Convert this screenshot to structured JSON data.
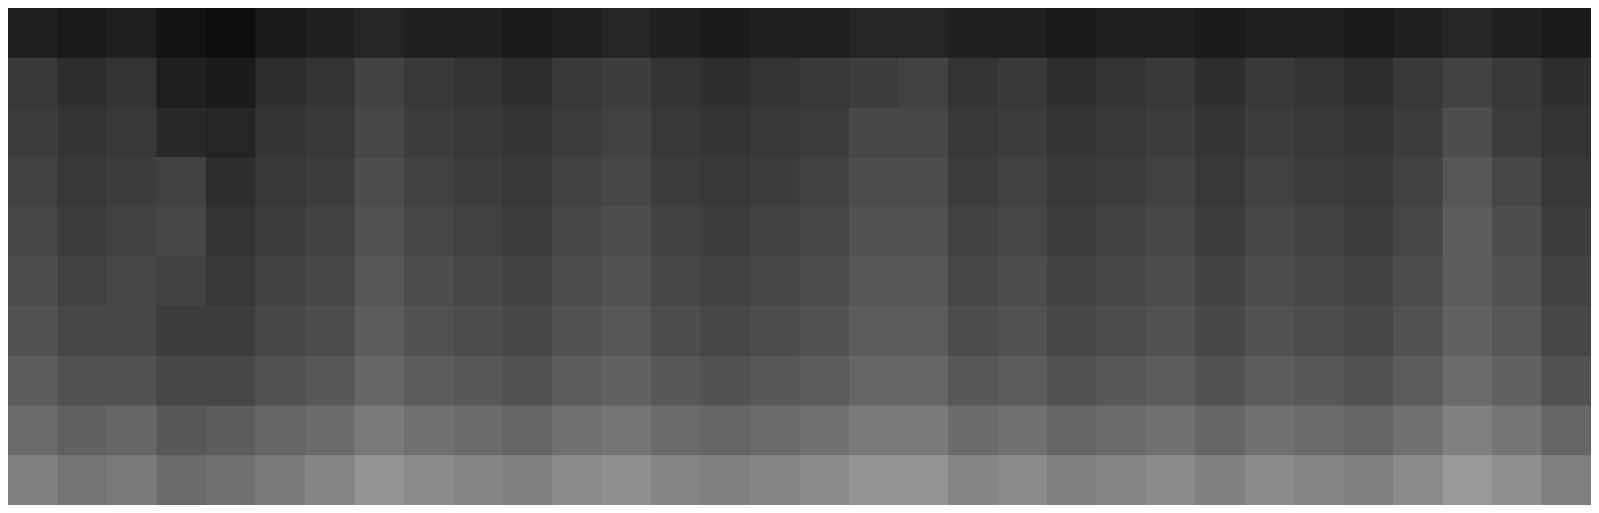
{
  "chart_data": {
    "type": "heatmap",
    "tick_labels": false,
    "color": "#ffffff",
    "zlim": [
      0,
      100
    ],
    "cells": [
      [
        12,
        10,
        12,
        8,
        6,
        10,
        12,
        14,
        12,
        12,
        10,
        12,
        14,
        12,
        10,
        12,
        12,
        14,
        14,
        12,
        12,
        10,
        12,
        12,
        10,
        12,
        12,
        10,
        12,
        14,
        12,
        10
      ],
      [
        22,
        18,
        20,
        12,
        10,
        18,
        20,
        26,
        22,
        20,
        18,
        22,
        24,
        20,
        18,
        20,
        22,
        24,
        26,
        20,
        22,
        18,
        20,
        22,
        18,
        22,
        20,
        18,
        22,
        26,
        22,
        18
      ],
      [
        24,
        20,
        22,
        16,
        14,
        20,
        22,
        28,
        24,
        22,
        20,
        24,
        26,
        22,
        20,
        22,
        24,
        28,
        28,
        22,
        24,
        20,
        22,
        24,
        20,
        24,
        22,
        20,
        24,
        30,
        24,
        20
      ],
      [
        26,
        22,
        24,
        26,
        18,
        22,
        24,
        30,
        26,
        24,
        22,
        26,
        28,
        24,
        22,
        24,
        26,
        30,
        30,
        24,
        26,
        22,
        24,
        26,
        22,
        26,
        24,
        22,
        26,
        34,
        28,
        22
      ],
      [
        28,
        24,
        26,
        28,
        20,
        24,
        26,
        32,
        28,
        26,
        24,
        28,
        30,
        26,
        24,
        26,
        28,
        32,
        32,
        26,
        28,
        24,
        26,
        28,
        24,
        28,
        26,
        24,
        28,
        36,
        30,
        24
      ],
      [
        30,
        26,
        28,
        26,
        22,
        26,
        28,
        34,
        30,
        28,
        26,
        30,
        32,
        28,
        26,
        28,
        30,
        34,
        34,
        28,
        30,
        26,
        28,
        30,
        26,
        30,
        28,
        26,
        30,
        36,
        32,
        26
      ],
      [
        32,
        28,
        28,
        24,
        24,
        28,
        30,
        36,
        32,
        30,
        28,
        32,
        34,
        30,
        28,
        30,
        32,
        36,
        36,
        30,
        32,
        28,
        30,
        32,
        28,
        32,
        30,
        28,
        32,
        38,
        34,
        28
      ],
      [
        36,
        32,
        32,
        28,
        28,
        32,
        34,
        40,
        36,
        34,
        32,
        36,
        38,
        34,
        32,
        34,
        36,
        40,
        40,
        34,
        36,
        32,
        34,
        36,
        32,
        36,
        34,
        32,
        36,
        42,
        38,
        32
      ],
      [
        42,
        38,
        40,
        34,
        36,
        40,
        42,
        48,
        44,
        42,
        40,
        44,
        46,
        42,
        40,
        42,
        44,
        48,
        48,
        42,
        44,
        40,
        42,
        44,
        40,
        44,
        42,
        40,
        44,
        50,
        46,
        40
      ],
      [
        50,
        46,
        48,
        42,
        44,
        48,
        52,
        58,
        54,
        52,
        50,
        54,
        56,
        52,
        50,
        52,
        54,
        58,
        58,
        52,
        54,
        50,
        52,
        54,
        50,
        54,
        52,
        50,
        54,
        60,
        56,
        50
      ]
    ]
  }
}
